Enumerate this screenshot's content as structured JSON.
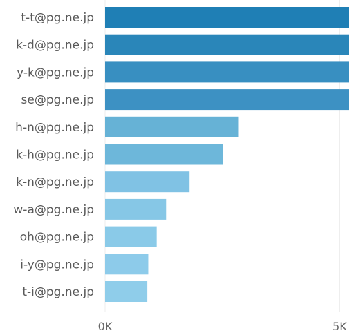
{
  "chart_data": {
    "type": "bar",
    "orientation": "horizontal",
    "categories": [
      "t-t@pg.ne.jp",
      "k-d@pg.ne.jp",
      "y-k@pg.ne.jp",
      "se@pg.ne.jp",
      "h-n@pg.ne.jp",
      "k-h@pg.ne.jp",
      "k-n@pg.ne.jp",
      "w-a@pg.ne.jp",
      "oh@pg.ne.jp",
      "i-y@pg.ne.jp",
      "t-i@pg.ne.jp"
    ],
    "values": [
      5200,
      5200,
      5200,
      5200,
      2850,
      2510,
      1800,
      1300,
      1100,
      920,
      900
    ],
    "bar_colors": [
      "#1f7fb5",
      "#2a86b9",
      "#388fc1",
      "#3d91c3",
      "#66b2d6",
      "#6db7da",
      "#80c2e4",
      "#86c7e6",
      "#8acae8",
      "#8dcbea",
      "#8fcdea"
    ],
    "x_ticks": [
      "0K",
      "5K"
    ],
    "x_tick_values": [
      0,
      5000
    ],
    "xlim": [
      0,
      5200
    ],
    "grid": true
  }
}
